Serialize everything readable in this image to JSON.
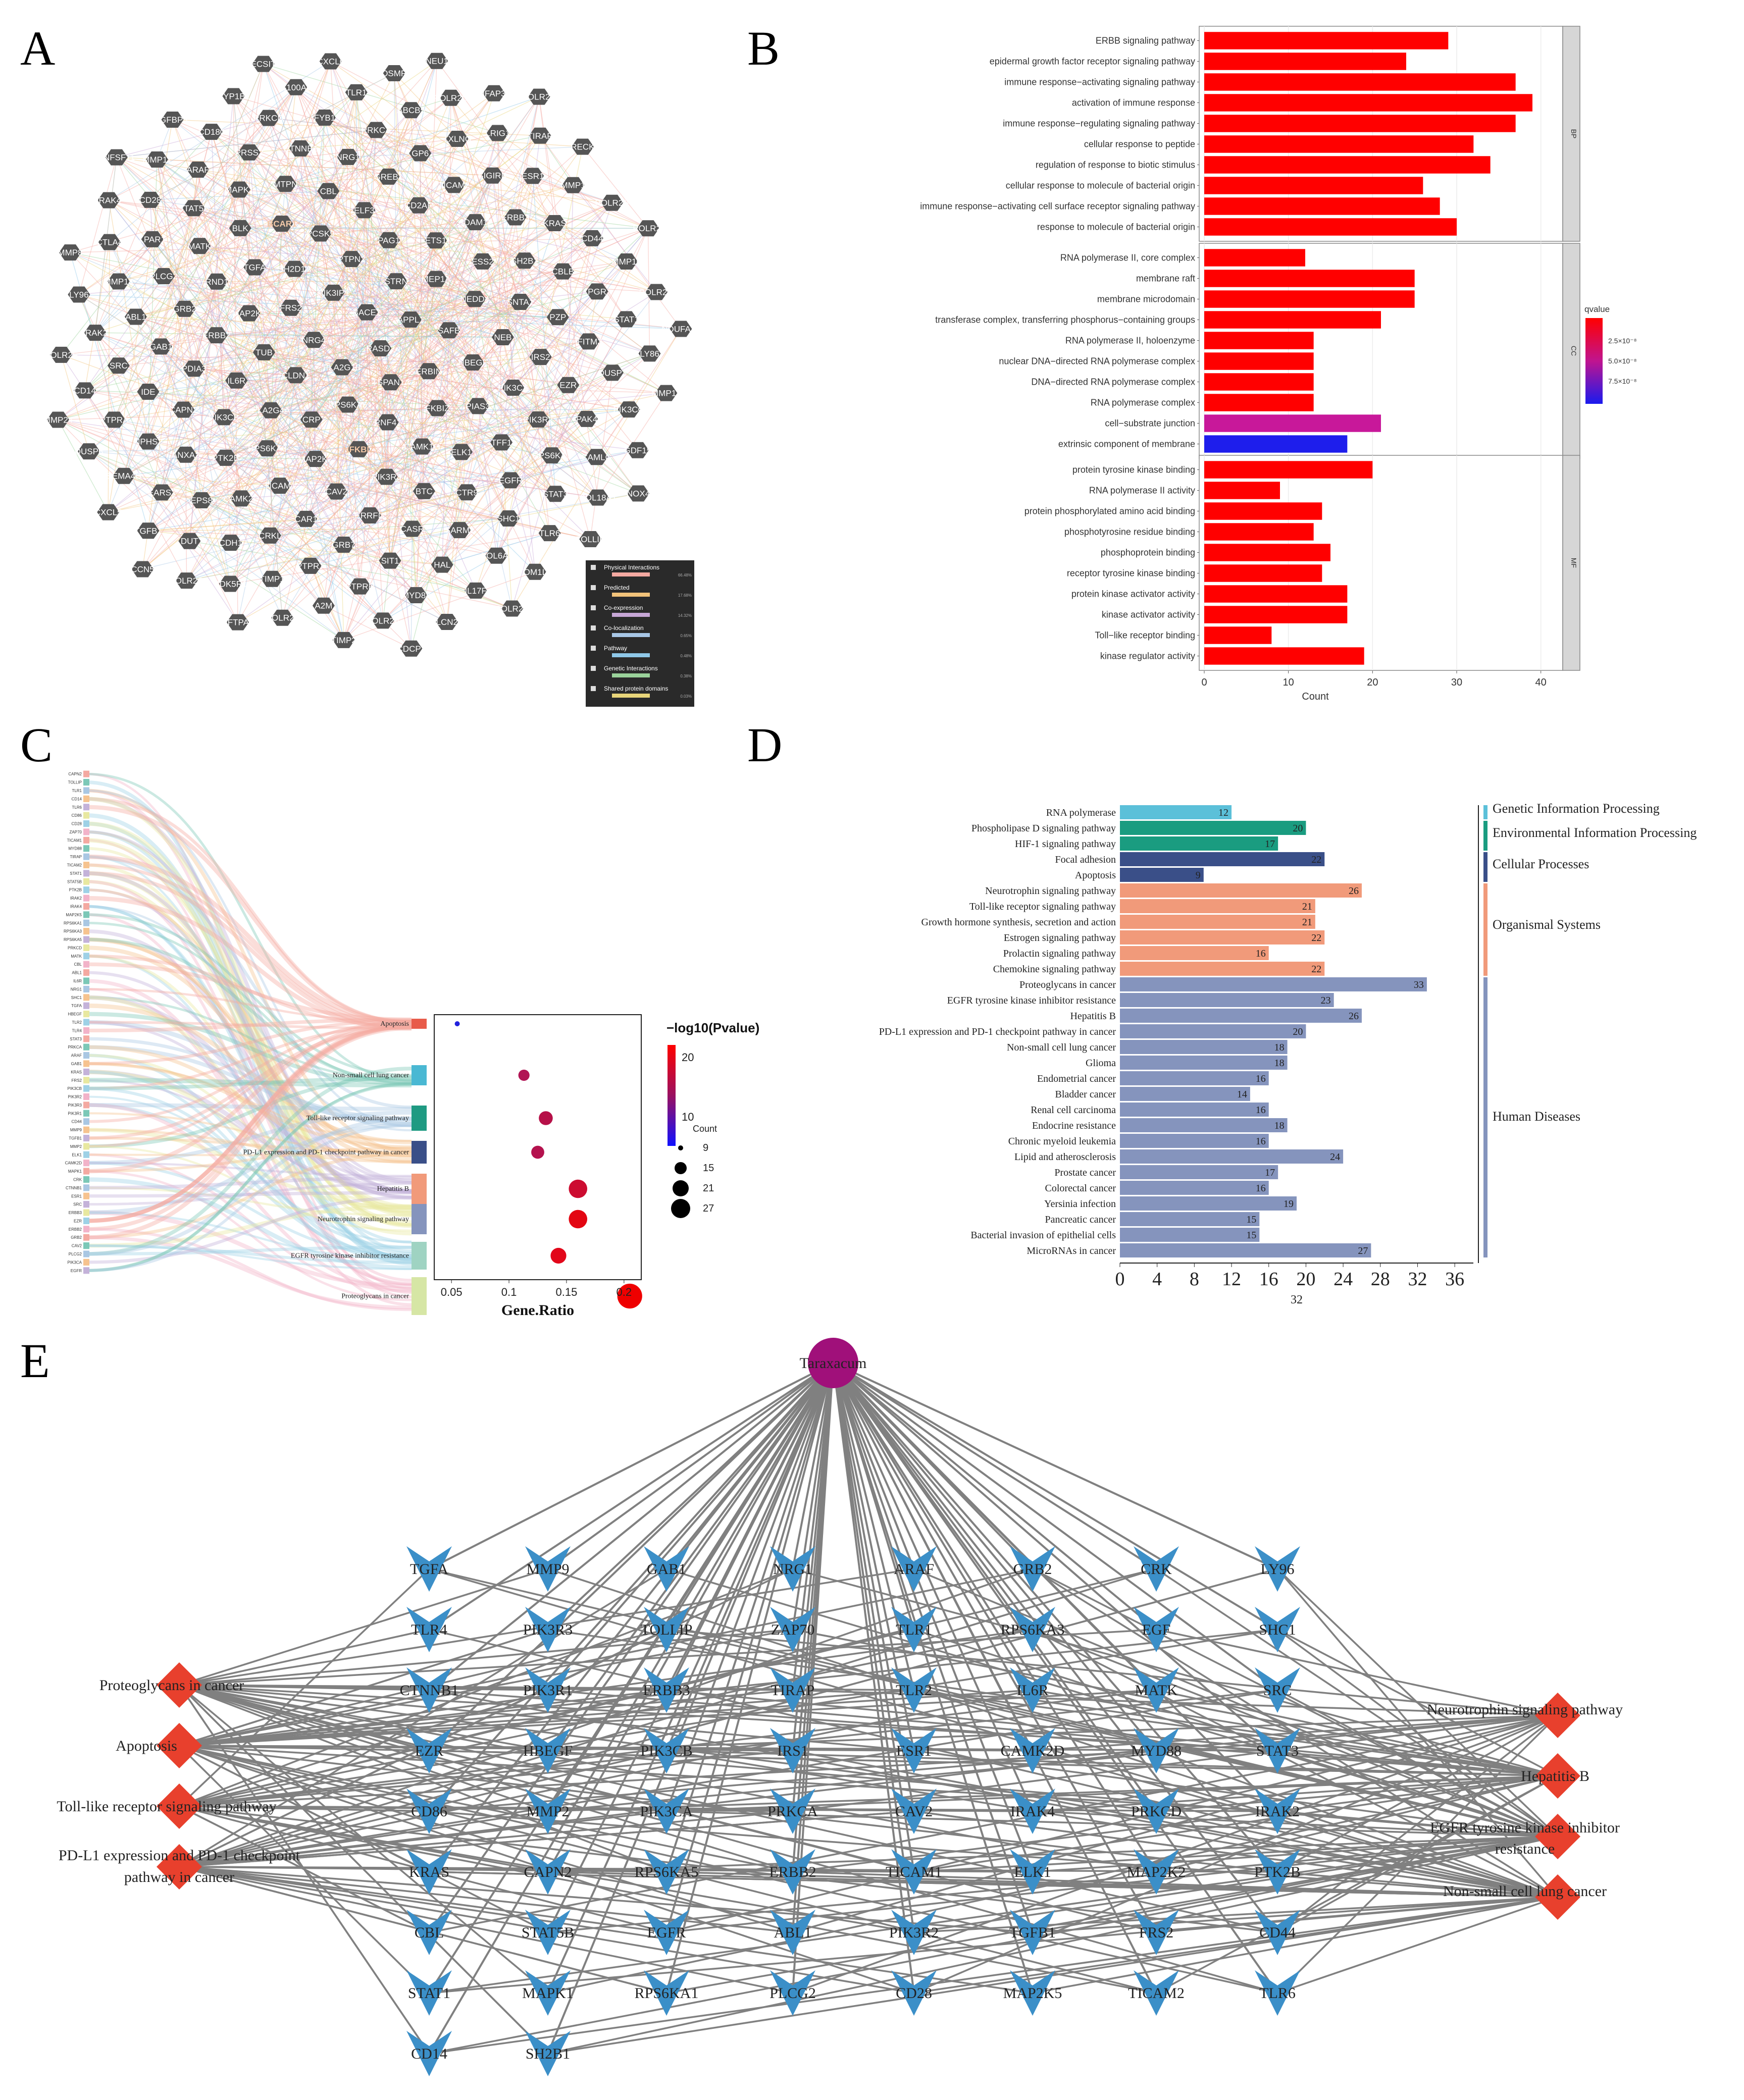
{
  "panel_labels": {
    "a": "A",
    "b": "B",
    "c": "C",
    "d": "D",
    "e": "E"
  },
  "network_a": {
    "nodes": [
      "RASD2",
      "PLA2G1B",
      "BACE1",
      "TSPAN14",
      "NRG4",
      "APPL1",
      "RPS6KA5",
      "PIK3IP1",
      "ERBIN",
      "CLDN1",
      "STRN",
      "RNF41",
      "FRS2",
      "SAFB",
      "CRP",
      "PTPN2",
      "FKBIZ",
      "TUB",
      "MEP1A",
      "NFKBIZ",
      "SH2D1A",
      "HBEGF",
      "PLA2G4A",
      "PAG1",
      "CAMK1G",
      "MAP2K5",
      "NEDD4",
      "MAP2K2",
      "PCSK9",
      "PIAS3",
      "IL6R",
      "ETS1",
      "PIK3R3",
      "TGFA",
      "NEB",
      "RPS6KA3",
      "ELF3",
      "ELK1",
      "ERBB2",
      "ESS2",
      "CAV2",
      "BCAR1",
      "PIK3CA",
      "PIK3CB",
      "CD2AP",
      "BTC",
      "RND1",
      "SNTA1",
      "TICAM1",
      "CBL",
      "TFF1",
      "PDIA3",
      "ADAM12",
      "ERRFI1",
      "BLK",
      "IRS2",
      "PTK2B",
      "GREB1",
      "CTR9",
      "GRB2",
      "SH2B1",
      "CAR1",
      "MTPN",
      "PIK3R2",
      "CAPN2",
      "TICAM2",
      "CASR",
      "MATK",
      "PZP",
      "CAMK2D",
      "NRG1",
      "EGFR",
      "GAB1",
      "ERBB3",
      "GRB7",
      "MAPK1",
      "EZR",
      "ANXA2",
      "GP6",
      "SARM1",
      "PLCG2",
      "CBLB",
      "CRKL",
      "CTNNB1",
      "RPS6KA1",
      "IDE",
      "SIGIRR",
      "SIT1",
      "STAT5B",
      "IFITM3",
      "EPS8",
      "PRKCA",
      "SHC1",
      "ABL1",
      "KRAS",
      "PTPRT",
      "PRSS2",
      "PAK4",
      "NPHS2",
      "TXLNG",
      "HAL",
      "LPAR1",
      "PGR",
      "CDH1",
      "FYB1",
      "STAT3",
      "SRC",
      "ESR1",
      "PTPRR",
      "ARAF",
      "DUSP3",
      "EARS2",
      "ABCB5",
      "COL6A3",
      "MMP14",
      "CD44",
      "TIMP1",
      "PRKCD",
      "CAMLG",
      "PTPRA",
      "LRIG1",
      "MYD88",
      "CD28",
      "STAT1",
      "DUT",
      "TLR1",
      "TLR6",
      "IRAK2",
      "MMP1",
      "A2M",
      "CD180",
      "PIK3CG",
      "SEMA4D",
      "POLR2D",
      "IL17F",
      "CTLA4",
      "MMP10",
      "CDK5R1",
      "S100A8",
      "COL18A1",
      "CD14",
      "TIRAP",
      "POLR2A",
      "MMP11",
      "LY86",
      "TGFB1",
      "OSMR",
      "TOM1L1",
      "LY96",
      "POLR2B",
      "POLR2L",
      "CYP1B1",
      "GDF15",
      "DUSP6",
      "MFAP3L",
      "LCN2",
      "IRAK4",
      "POLR2G",
      "POLR2C",
      "CXCL6",
      "TOLLIP",
      "POLR2F",
      "RECK",
      "TIMP2",
      "IGFBP3",
      "MMP17",
      "CXCL5",
      "NEU1",
      "POLR2K",
      "MMP8",
      "POLR2I",
      "SFTPA1",
      "ECSIT",
      "NOX4",
      "MMP24",
      "POLR2H",
      "CDCP1",
      "TNFSF11",
      "NDUFA13",
      "CCN5"
    ],
    "legend": [
      {
        "label": "Physical Interactions",
        "pct": "66.48%",
        "color": "#f4a9a1"
      },
      {
        "label": "Predicted",
        "pct": "17.68%",
        "color": "#f2c37a"
      },
      {
        "label": "Co-expression",
        "pct": "14.32%",
        "color": "#c7a7d6"
      },
      {
        "label": "Co-localization",
        "pct": "0.65%",
        "color": "#a8c7e6"
      },
      {
        "label": "Pathway",
        "pct": "0.48%",
        "color": "#8fc8e8"
      },
      {
        "label": "Genetic Interactions",
        "pct": "0.38%",
        "color": "#9ad29a"
      },
      {
        "label": "Shared protein domains",
        "pct": "0.03%",
        "color": "#e8d57a"
      }
    ]
  },
  "chart_data": [
    {
      "type": "bar",
      "orientation": "horizontal",
      "facets": [
        {
          "name": "BP",
          "categories": [
            "ERBB signaling pathway",
            "epidermal growth factor receptor signaling pathway",
            "immune response−activating signaling pathway",
            "activation of immune response",
            "immune response−regulating signaling pathway",
            "cellular response to peptide",
            "regulation of response to biotic stimulus",
            "cellular response to molecule of bacterial origin",
            "immune response−activating cell surface receptor signaling pathway",
            "response to molecule of bacterial origin"
          ],
          "values": [
            29,
            24,
            37,
            39,
            37,
            32,
            34,
            26,
            28,
            30
          ],
          "qvalue_colors": [
            "#ff0000",
            "#ff0000",
            "#ff0000",
            "#ff0000",
            "#ff0000",
            "#ff0000",
            "#ff0000",
            "#ff0000",
            "#ff0000",
            "#ff0000"
          ]
        },
        {
          "name": "CC",
          "categories": [
            "RNA polymerase II, core complex",
            "membrane raft",
            "membrane microdomain",
            "transferase complex, transferring phosphorus−containing groups",
            "RNA polymerase II, holoenzyme",
            "nuclear DNA−directed RNA polymerase complex",
            "DNA−directed RNA polymerase complex",
            "RNA polymerase complex",
            "cell−substrate junction",
            "extrinsic component of membrane"
          ],
          "values": [
            12,
            25,
            25,
            21,
            13,
            13,
            13,
            13,
            21,
            17
          ],
          "qvalue_colors": [
            "#ff0000",
            "#ff0000",
            "#ff0000",
            "#ff0000",
            "#ff0000",
            "#ff0000",
            "#ff0000",
            "#ff0000",
            "#c8189a",
            "#1e1eec"
          ]
        },
        {
          "name": "MF",
          "categories": [
            "protein tyrosine kinase binding",
            "RNA polymerase II activity",
            "protein phosphorylated amino acid binding",
            "phosphotyrosine residue binding",
            "phosphoprotein binding",
            "receptor tyrosine kinase binding",
            "protein kinase activator activity",
            "kinase activator activity",
            "Toll−like receptor binding",
            "kinase regulator activity"
          ],
          "values": [
            20,
            9,
            14,
            13,
            15,
            14,
            17,
            17,
            8,
            19
          ],
          "qvalue_colors": [
            "#ff0000",
            "#ff0000",
            "#ff0000",
            "#ff0000",
            "#ff0000",
            "#ff0000",
            "#ff0000",
            "#ff0000",
            "#ff0000",
            "#ff0000"
          ]
        }
      ],
      "xlabel": "Count",
      "xlim": [
        0,
        42
      ],
      "xticks": [
        0,
        10,
        20,
        30,
        40
      ],
      "legend": {
        "title": "qvalue",
        "labels": [
          "2.5×10⁻⁸",
          "5.0×10⁻⁸",
          "7.5×10⁻⁸"
        ],
        "position": "right"
      }
    },
    {
      "type": "scatter",
      "categories": [
        "Apoptosis",
        "Non-small cell lung cancer",
        "Toll-like receptor signaling pathway",
        "PD-L1 expression and PD-1 checkpoint pathway in cancer",
        "Hepatitis B",
        "Neurotrophin signaling pathway",
        "EGFR tyrosine kinase inhibitor resistance",
        "Proteoglycans in cancer"
      ],
      "x": [
        0.055,
        0.113,
        0.132,
        0.125,
        0.16,
        0.16,
        0.143,
        0.205
      ],
      "size": [
        9,
        18,
        21,
        20,
        26,
        26,
        23,
        33
      ],
      "color": [
        "#2222dd",
        "#b11454",
        "#b61048",
        "#b4124e",
        "#cc0c30",
        "#e30612",
        "#e2071a",
        "#ef0000"
      ],
      "xlabel": "Gene.Ratio",
      "xticks": [
        0.05,
        0.1,
        0.15,
        0.2
      ],
      "xlim": [
        0.035,
        0.215
      ],
      "color_legend": {
        "title": "−log10(Pvalue)",
        "ticks": [
          "20",
          "10"
        ]
      },
      "size_legend": {
        "title": "Count",
        "values": [
          "9",
          "15",
          "21",
          "27"
        ]
      },
      "sankey_genes": [
        "CAPN2",
        "TOLLIP",
        "TLR1",
        "CD14",
        "TLR6",
        "CD86",
        "CD28",
        "ZAP70",
        "TICAM1",
        "MYD88",
        "TIRAP",
        "TICAM2",
        "STAT1",
        "STAT5B",
        "PTK2B",
        "IRAK2",
        "IRAK4",
        "MAP2K5",
        "RPS6KA1",
        "RPS6KA3",
        "RPS6KA5",
        "PRKCD",
        "MATK",
        "CBL",
        "ABL1",
        "IL6R",
        "NRG1",
        "SHC1",
        "TGFA",
        "HBEGF",
        "TLR2",
        "TLR4",
        "STAT3",
        "PRKCA",
        "ARAF",
        "GAB1",
        "KRAS",
        "FRS2",
        "PIK3CB",
        "PIK3R2",
        "PIK3R3",
        "PIK3R1",
        "CD44",
        "MMP9",
        "TGFB1",
        "MMP2",
        "ELK1",
        "CAMK2D",
        "MAPK1",
        "CRK",
        "CTNNB1",
        "ESR1",
        "SRC",
        "ERBB3",
        "EZR",
        "ERBB2",
        "GRB2",
        "CAV2",
        "PLCG2",
        "PIK3CA",
        "EGFR"
      ]
    },
    {
      "type": "bar",
      "orientation": "horizontal",
      "categories": [
        "RNA polymerase",
        "Phospholipase D signaling pathway",
        "HIF-1 signaling pathway",
        "Focal adhesion",
        "Apoptosis",
        "Neurotrophin signaling pathway",
        "Toll-like receptor signaling pathway",
        "Growth hormone synthesis, secretion and action",
        "Estrogen signaling pathway",
        "Prolactin signaling pathway",
        "Chemokine signaling pathway",
        "Proteoglycans in cancer",
        "EGFR tyrosine kinase inhibitor resistance",
        "Hepatitis B",
        "PD-L1 expression and PD-1 checkpoint pathway in cancer",
        "Non-small cell lung cancer",
        "Glioma",
        "Endometrial cancer",
        "Bladder cancer",
        "Renal cell carcinoma",
        "Endocrine resistance",
        "Chronic myeloid leukemia",
        "Lipid and atherosclerosis",
        "Prostate cancer",
        "Colorectal cancer",
        "Yersinia infection",
        "Pancreatic cancer",
        "Bacterial invasion of epithelial cells",
        "MicroRNAs in cancer"
      ],
      "values": [
        12,
        20,
        17,
        22,
        9,
        26,
        21,
        21,
        22,
        16,
        22,
        33,
        23,
        26,
        20,
        18,
        18,
        16,
        14,
        16,
        18,
        16,
        24,
        17,
        16,
        19,
        15,
        15,
        27
      ],
      "groups": [
        "Genetic Information Processing",
        "Environmental Information Processing",
        "Environmental Information Processing",
        "Cellular Processes",
        "Cellular Processes",
        "Organismal Systems",
        "Organismal Systems",
        "Organismal Systems",
        "Organismal Systems",
        "Organismal Systems",
        "Organismal Systems",
        "Human Diseases",
        "Human Diseases",
        "Human Diseases",
        "Human Diseases",
        "Human Diseases",
        "Human Diseases",
        "Human Diseases",
        "Human Diseases",
        "Human Diseases",
        "Human Diseases",
        "Human Diseases",
        "Human Diseases",
        "Human Diseases",
        "Human Diseases",
        "Human Diseases",
        "Human Diseases",
        "Human Diseases",
        "Human Diseases"
      ],
      "group_legend": [
        {
          "name": "Genetic Information Processing",
          "color": "#5bc0d9"
        },
        {
          "name": "Environmental Information Processing",
          "color": "#1a9c80"
        },
        {
          "name": "Cellular Processes",
          "color": "#3a4f88"
        },
        {
          "name": "Organismal Systems",
          "color": "#f19a7a"
        },
        {
          "name": "Human Diseases",
          "color": "#8594bd"
        }
      ],
      "xticks": [
        0,
        4,
        8,
        12,
        16,
        20,
        24,
        28,
        32,
        36
      ],
      "xlim": [
        0,
        38
      ],
      "xlabel": "32"
    }
  ],
  "network_e": {
    "root": "Taraxacum",
    "genes": [
      [
        "TGFA",
        "MMP9",
        "GAB1",
        "NRG1",
        "ARAF",
        "GRB2",
        "CRK",
        "LY96"
      ],
      [
        "TLR4",
        "PIK3R3",
        "TOLLIP",
        "ZAP70",
        "TLR1",
        "RPS6KA3",
        "EGF",
        "SHC1"
      ],
      [
        "CTNNB1",
        "PIK3R1",
        "ERBB3",
        "TIRAP",
        "TLR2",
        "IL6R",
        "MATK",
        "SRC"
      ],
      [
        "EZR",
        "HBEGF",
        "PIK3CB",
        "IRS1",
        "ESR1",
        "CAMK2D",
        "MYD88",
        "STAT3"
      ],
      [
        "CD86",
        "MMP2",
        "PIK3CA",
        "PRKCA",
        "CAV2",
        "IRAK4",
        "PRKCD",
        "IRAK2"
      ],
      [
        "KRAS",
        "CAPN2",
        "RPS6KA5",
        "ERBB2",
        "TICAM1",
        "ELK1",
        "MAP2K2",
        "PTK2B"
      ],
      [
        "CBL",
        "STAT5B",
        "EGFR",
        "ABL1",
        "PIK3R2",
        "TGFB1",
        "FRS2",
        "CD44"
      ],
      [
        "STAT1",
        "MAPK1",
        "RPS6KA1",
        "PLCG2",
        "CD28",
        "MAP2K5",
        "TICAM2",
        "TLR6"
      ],
      [
        "CD14",
        "SH2B1"
      ]
    ],
    "left_pathways": [
      "Proteoglycans in cancer",
      "Apoptosis",
      "Toll-like receptor signaling pathway",
      "PD-L1 expression and PD-1 checkpoint pathway in cancer"
    ],
    "right_pathways": [
      "Neurotrophin signaling pathway",
      "Hepatitis B",
      "EGFR tyrosine kinase inhibitor resistance",
      "Non-small cell lung cancer"
    ]
  },
  "colors": {
    "node_gene_e": "#3b8fc8",
    "node_pathway_e": "#e8402d",
    "node_root_e": "#a0107a",
    "edge_e": "#808080",
    "node_a": "#555555",
    "bar_red": "#ff0000"
  }
}
